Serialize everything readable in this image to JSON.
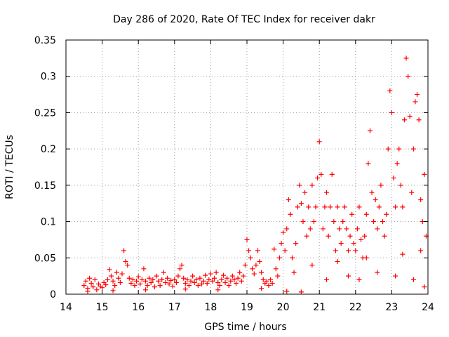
{
  "chart_data": {
    "type": "scatter",
    "title": "Day 286 of 2020, Rate Of TEC Index for receiver dakr",
    "xlabel": "GPS time / hours",
    "ylabel": "ROTI / TECUs",
    "xlim": [
      14,
      24
    ],
    "ylim": [
      0,
      0.35
    ],
    "grid": true,
    "marker": "+",
    "color": "#ff0000",
    "x_ticks": [
      "14",
      "15",
      "16",
      "17",
      "18",
      "19",
      "20",
      "21",
      "22",
      "23",
      "24"
    ],
    "y_ticks": [
      "0",
      "0.05",
      "0.1",
      "0.15",
      "0.2",
      "0.25",
      "0.3",
      "0.35"
    ],
    "series": [
      {
        "name": "ROTI",
        "points": [
          [
            14.5,
            0.012
          ],
          [
            14.55,
            0.018
          ],
          [
            14.6,
            0.008
          ],
          [
            14.65,
            0.022
          ],
          [
            14.7,
            0.015
          ],
          [
            14.75,
            0.01
          ],
          [
            14.8,
            0.02
          ],
          [
            14.85,
            0.006
          ],
          [
            14.9,
            0.014
          ],
          [
            14.95,
            0.011
          ],
          [
            15.0,
            0.009
          ],
          [
            15.05,
            0.016
          ],
          [
            15.1,
            0.013
          ],
          [
            15.15,
            0.02
          ],
          [
            15.2,
            0.034
          ],
          [
            15.25,
            0.025
          ],
          [
            15.3,
            0.018
          ],
          [
            15.35,
            0.012
          ],
          [
            15.4,
            0.03
          ],
          [
            15.45,
            0.022
          ],
          [
            15.5,
            0.016
          ],
          [
            15.55,
            0.028
          ],
          [
            15.6,
            0.06
          ],
          [
            15.65,
            0.045
          ],
          [
            15.7,
            0.04
          ],
          [
            15.75,
            0.022
          ],
          [
            15.8,
            0.015
          ],
          [
            15.85,
            0.02
          ],
          [
            15.9,
            0.012
          ],
          [
            15.95,
            0.018
          ],
          [
            16.0,
            0.024
          ],
          [
            16.05,
            0.014
          ],
          [
            16.1,
            0.02
          ],
          [
            16.15,
            0.035
          ],
          [
            16.2,
            0.018
          ],
          [
            16.25,
            0.012
          ],
          [
            16.3,
            0.022
          ],
          [
            16.35,
            0.016
          ],
          [
            16.4,
            0.02
          ],
          [
            16.45,
            0.01
          ],
          [
            16.5,
            0.025
          ],
          [
            16.55,
            0.018
          ],
          [
            16.6,
            0.012
          ],
          [
            16.65,
            0.02
          ],
          [
            16.7,
            0.03
          ],
          [
            16.75,
            0.016
          ],
          [
            16.8,
            0.022
          ],
          [
            16.85,
            0.014
          ],
          [
            16.9,
            0.019
          ],
          [
            16.95,
            0.011
          ],
          [
            17.0,
            0.02
          ],
          [
            17.05,
            0.016
          ],
          [
            17.1,
            0.025
          ],
          [
            17.15,
            0.035
          ],
          [
            17.2,
            0.04
          ],
          [
            17.25,
            0.022
          ],
          [
            17.3,
            0.015
          ],
          [
            17.35,
            0.02
          ],
          [
            17.4,
            0.012
          ],
          [
            17.45,
            0.018
          ],
          [
            17.5,
            0.025
          ],
          [
            17.55,
            0.016
          ],
          [
            17.6,
            0.02
          ],
          [
            17.65,
            0.012
          ],
          [
            17.7,
            0.022
          ],
          [
            17.75,
            0.014
          ],
          [
            17.8,
            0.018
          ],
          [
            17.85,
            0.026
          ],
          [
            17.9,
            0.015
          ],
          [
            17.95,
            0.02
          ],
          [
            18.0,
            0.028
          ],
          [
            18.05,
            0.018
          ],
          [
            18.1,
            0.022
          ],
          [
            18.15,
            0.03
          ],
          [
            18.2,
            0.016
          ],
          [
            18.25,
            0.012
          ],
          [
            18.3,
            0.02
          ],
          [
            18.35,
            0.026
          ],
          [
            18.4,
            0.016
          ],
          [
            18.45,
            0.022
          ],
          [
            18.5,
            0.012
          ],
          [
            18.55,
            0.018
          ],
          [
            18.6,
            0.025
          ],
          [
            18.65,
            0.02
          ],
          [
            18.7,
            0.015
          ],
          [
            18.75,
            0.022
          ],
          [
            18.8,
            0.03
          ],
          [
            18.85,
            0.018
          ],
          [
            18.9,
            0.025
          ],
          [
            18.95,
            0.04
          ],
          [
            19.0,
            0.075
          ],
          [
            19.05,
            0.06
          ],
          [
            19.1,
            0.05
          ],
          [
            19.15,
            0.035
          ],
          [
            19.2,
            0.028
          ],
          [
            19.25,
            0.04
          ],
          [
            19.3,
            0.06
          ],
          [
            19.35,
            0.045
          ],
          [
            19.4,
            0.03
          ],
          [
            19.45,
            0.02
          ],
          [
            19.5,
            0.015
          ],
          [
            19.55,
            0.018
          ],
          [
            19.6,
            0.012
          ],
          [
            19.65,
            0.02
          ],
          [
            19.7,
            0.015
          ],
          [
            19.75,
            0.062
          ],
          [
            19.8,
            0.035
          ],
          [
            19.85,
            0.025
          ],
          [
            19.9,
            0.05
          ],
          [
            19.95,
            0.07
          ],
          [
            20.0,
            0.085
          ],
          [
            20.05,
            0.06
          ],
          [
            20.1,
            0.09
          ],
          [
            20.15,
            0.13
          ],
          [
            20.2,
            0.11
          ],
          [
            20.25,
            0.05
          ],
          [
            20.3,
            0.03
          ],
          [
            20.35,
            0.07
          ],
          [
            20.4,
            0.12
          ],
          [
            20.45,
            0.15
          ],
          [
            20.5,
            0.125
          ],
          [
            20.55,
            0.1
          ],
          [
            20.6,
            0.14
          ],
          [
            20.65,
            0.08
          ],
          [
            20.7,
            0.12
          ],
          [
            20.75,
            0.09
          ],
          [
            20.8,
            0.15
          ],
          [
            20.85,
            0.1
          ],
          [
            20.9,
            0.12
          ],
          [
            20.95,
            0.16
          ],
          [
            21.0,
            0.21
          ],
          [
            21.05,
            0.165
          ],
          [
            21.1,
            0.09
          ],
          [
            21.15,
            0.12
          ],
          [
            21.2,
            0.14
          ],
          [
            21.25,
            0.08
          ],
          [
            21.3,
            0.12
          ],
          [
            21.35,
            0.165
          ],
          [
            21.4,
            0.1
          ],
          [
            21.45,
            0.06
          ],
          [
            21.5,
            0.12
          ],
          [
            21.55,
            0.09
          ],
          [
            21.6,
            0.07
          ],
          [
            21.65,
            0.1
          ],
          [
            21.7,
            0.12
          ],
          [
            21.75,
            0.09
          ],
          [
            21.8,
            0.06
          ],
          [
            21.85,
            0.08
          ],
          [
            21.9,
            0.11
          ],
          [
            21.95,
            0.07
          ],
          [
            22.0,
            0.06
          ],
          [
            22.05,
            0.09
          ],
          [
            22.1,
            0.12
          ],
          [
            22.15,
            0.075
          ],
          [
            22.2,
            0.05
          ],
          [
            22.25,
            0.08
          ],
          [
            22.3,
            0.11
          ],
          [
            22.35,
            0.18
          ],
          [
            22.4,
            0.225
          ],
          [
            22.45,
            0.14
          ],
          [
            22.5,
            0.1
          ],
          [
            22.55,
            0.13
          ],
          [
            22.6,
            0.09
          ],
          [
            22.65,
            0.12
          ],
          [
            22.7,
            0.15
          ],
          [
            22.75,
            0.1
          ],
          [
            22.8,
            0.08
          ],
          [
            22.85,
            0.11
          ],
          [
            22.9,
            0.2
          ],
          [
            22.95,
            0.28
          ],
          [
            23.0,
            0.25
          ],
          [
            23.05,
            0.16
          ],
          [
            23.1,
            0.12
          ],
          [
            23.15,
            0.18
          ],
          [
            23.2,
            0.2
          ],
          [
            23.25,
            0.15
          ],
          [
            23.3,
            0.12
          ],
          [
            23.35,
            0.24
          ],
          [
            23.4,
            0.325
          ],
          [
            23.45,
            0.3
          ],
          [
            23.5,
            0.245
          ],
          [
            23.55,
            0.14
          ],
          [
            23.6,
            0.2
          ],
          [
            23.65,
            0.265
          ],
          [
            23.7,
            0.275
          ],
          [
            23.75,
            0.24
          ],
          [
            23.8,
            0.13
          ],
          [
            23.85,
            0.1
          ],
          [
            23.9,
            0.165
          ],
          [
            23.95,
            0.08
          ],
          [
            14.6,
            0.004
          ],
          [
            15.3,
            0.005
          ],
          [
            16.2,
            0.006
          ],
          [
            17.3,
            0.007
          ],
          [
            18.2,
            0.006
          ],
          [
            19.4,
            0.008
          ],
          [
            20.1,
            0.004
          ],
          [
            20.5,
            0.003
          ],
          [
            21.2,
            0.02
          ],
          [
            21.8,
            0.025
          ],
          [
            22.1,
            0.02
          ],
          [
            22.6,
            0.03
          ],
          [
            23.1,
            0.025
          ],
          [
            23.6,
            0.02
          ],
          [
            23.9,
            0.01
          ],
          [
            20.8,
            0.04
          ],
          [
            21.5,
            0.045
          ],
          [
            22.3,
            0.05
          ],
          [
            23.3,
            0.055
          ],
          [
            23.8,
            0.06
          ]
        ]
      }
    ]
  }
}
